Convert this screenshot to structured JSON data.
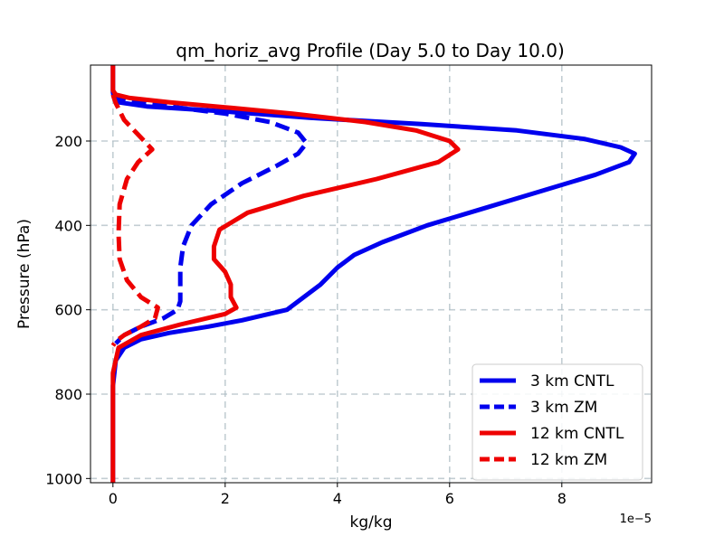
{
  "chart_data": {
    "type": "line",
    "title": "qm_horiz_avg Profile (Day 5.0 to Day 10.0)",
    "xlabel": "kg/kg",
    "ylabel": "Pressure (hPa)",
    "x_offset_label": "1e−5",
    "xlim": [
      -0.4,
      9.6
    ],
    "ylim": [
      1010,
      20
    ],
    "y_inverted": true,
    "grid": true,
    "legend_position": "lower right",
    "x_ticks": [
      0,
      2,
      4,
      6,
      8
    ],
    "x_tick_labels": [
      "0",
      "2",
      "4",
      "6",
      "8"
    ],
    "y_ticks": [
      200,
      400,
      600,
      800,
      1000
    ],
    "y_tick_labels": [
      "200",
      "400",
      "600",
      "800",
      "1000"
    ],
    "series": [
      {
        "name": "3 km CNTL",
        "color": "#0000ee",
        "style": "solid",
        "x": [
          0,
          0,
          0.02,
          0.1,
          0.6,
          2.0,
          3.5,
          5.5,
          7.2,
          8.4,
          9.05,
          9.3,
          9.2,
          8.6,
          7.6,
          6.6,
          5.6,
          4.8,
          4.3,
          4.0,
          3.7,
          3.4,
          3.1,
          2.3,
          1.7,
          1.0,
          0.5,
          0.2,
          0.05,
          0,
          0,
          0
        ],
        "y": [
          20,
          85,
          98,
          108,
          118,
          130,
          145,
          160,
          175,
          195,
          215,
          230,
          250,
          280,
          320,
          360,
          400,
          440,
          470,
          500,
          540,
          570,
          600,
          625,
          640,
          655,
          670,
          690,
          720,
          780,
          900,
          1010
        ]
      },
      {
        "name": "3 km ZM",
        "color": "#0000ee",
        "style": "dashed",
        "x": [
          0,
          0.05,
          0.3,
          1.0,
          2.0,
          2.8,
          3.3,
          3.45,
          3.3,
          2.9,
          2.3,
          1.75,
          1.4,
          1.25,
          1.2,
          1.2,
          1.2,
          1.15,
          0.9,
          0.5,
          0.2,
          0.05
        ],
        "y": [
          88,
          95,
          105,
          118,
          135,
          155,
          180,
          205,
          230,
          260,
          300,
          350,
          400,
          450,
          500,
          550,
          580,
          600,
          620,
          640,
          660,
          680
        ]
      },
      {
        "name": "12 km CNTL",
        "color": "#ee0000",
        "style": "solid",
        "x": [
          0,
          0,
          0.05,
          0.3,
          1.0,
          2.0,
          3.2,
          4.5,
          5.4,
          6.0,
          6.15,
          5.8,
          4.7,
          3.4,
          2.4,
          1.9,
          1.8,
          1.8,
          2.0,
          2.1,
          2.1,
          2.2,
          2.0,
          1.2,
          0.5,
          0.1,
          0,
          0,
          0
        ],
        "y": [
          20,
          80,
          90,
          98,
          108,
          120,
          135,
          155,
          175,
          200,
          220,
          250,
          290,
          330,
          370,
          410,
          450,
          480,
          510,
          540,
          570,
          595,
          610,
          635,
          660,
          690,
          750,
          850,
          1010
        ]
      },
      {
        "name": "12 km ZM",
        "color": "#ee0000",
        "style": "dashed",
        "x": [
          0.0,
          0.05,
          0.2,
          0.45,
          0.7,
          0.45,
          0.25,
          0.12,
          0.1,
          0.12,
          0.25,
          0.5,
          0.8,
          0.75,
          0.5,
          0.2,
          0.05,
          0.0
        ],
        "y": [
          90,
          110,
          150,
          185,
          220,
          250,
          290,
          350,
          420,
          480,
          530,
          570,
          595,
          620,
          640,
          660,
          675,
          685
        ]
      }
    ],
    "legend": [
      "3 km CNTL",
      "3 km ZM",
      "12 km CNTL",
      "12 km ZM"
    ]
  }
}
